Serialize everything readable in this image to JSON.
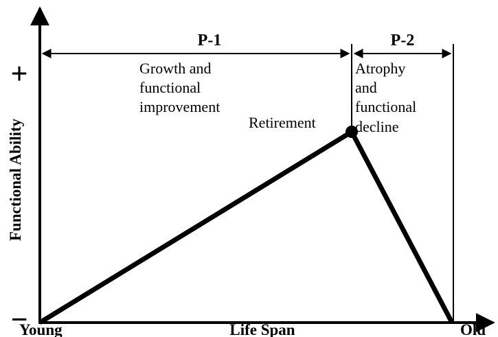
{
  "axes": {
    "y_label": "Functional Ability",
    "y_high": "+",
    "y_low": "−",
    "x_label": "Life Span",
    "x_start": "Young",
    "x_end": "Old"
  },
  "phases": [
    {
      "label": "P-1",
      "description": [
        "Growth and",
        "functional",
        "improvement"
      ]
    },
    {
      "label": "P-2",
      "description": [
        "Atrophy",
        "and",
        "functional",
        "decline"
      ]
    }
  ],
  "milestone": "Retirement"
}
